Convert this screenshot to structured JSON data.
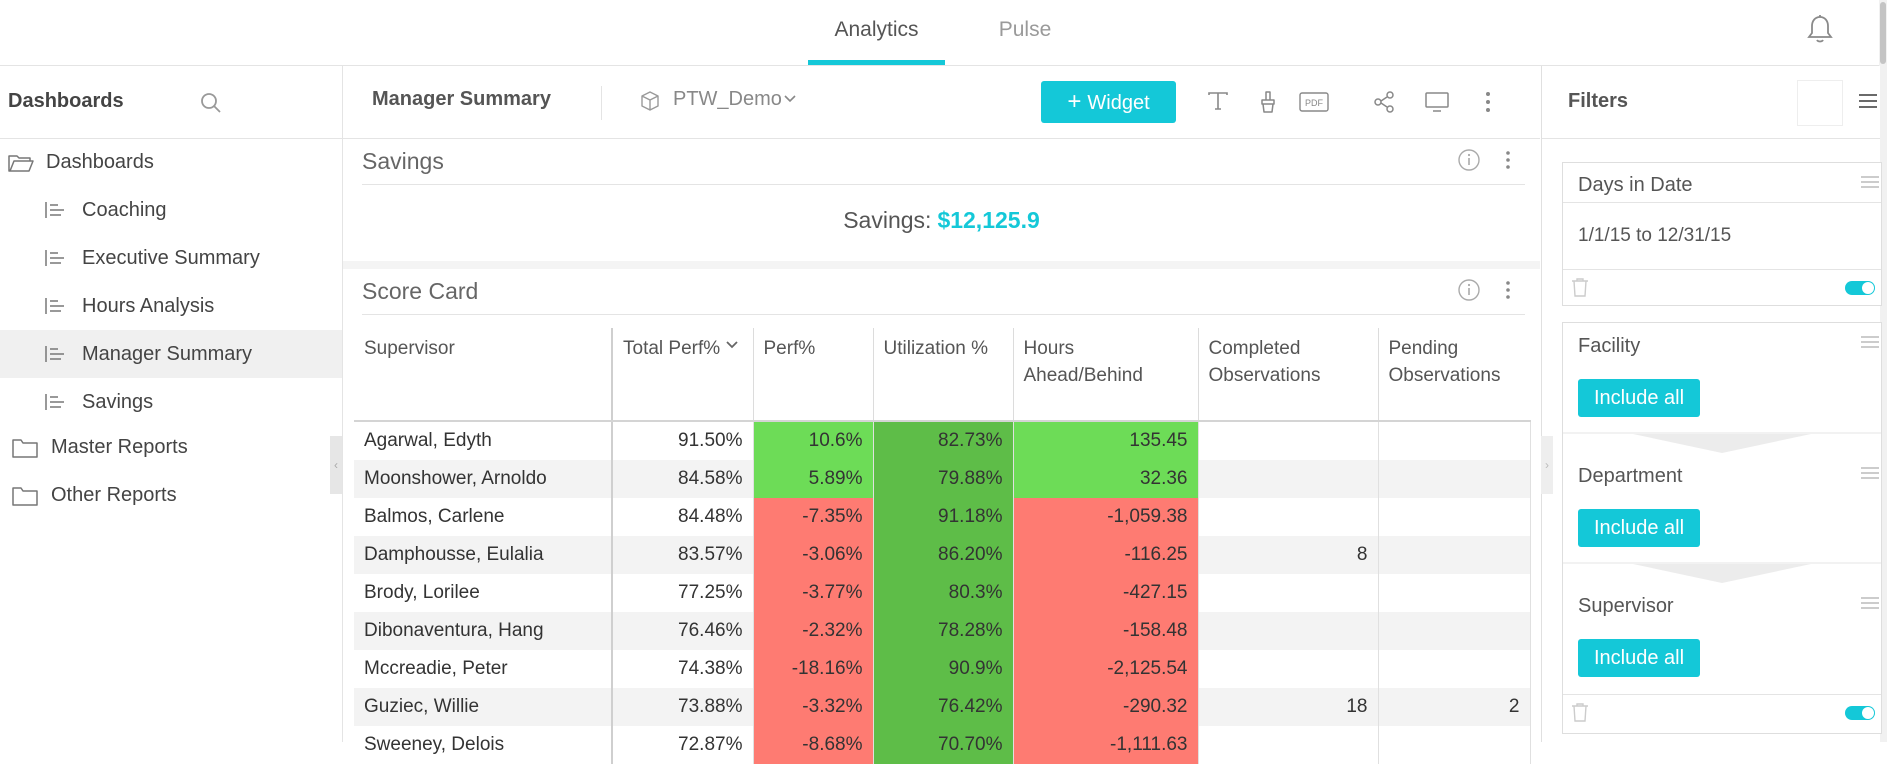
{
  "tabs": [
    {
      "label": "Analytics",
      "active": true
    },
    {
      "label": "Pulse",
      "active": false
    }
  ],
  "topbar": {
    "notifications_icon": "bell-icon"
  },
  "sidebar": {
    "title": "Dashboards",
    "search_icon": "search-icon",
    "items": [
      {
        "label": "Dashboards",
        "type": "folder-open",
        "level": 0
      },
      {
        "label": "Coaching",
        "type": "dashboard",
        "level": 1
      },
      {
        "label": "Executive Summary",
        "type": "dashboard",
        "level": 1
      },
      {
        "label": "Hours Analysis",
        "type": "dashboard",
        "level": 1
      },
      {
        "label": "Manager Summary",
        "type": "dashboard",
        "level": 1,
        "selected": true
      },
      {
        "label": "Savings",
        "type": "dashboard",
        "level": 1
      },
      {
        "label": "Master Reports",
        "type": "folder",
        "level": 0
      },
      {
        "label": "Other Reports",
        "type": "folder",
        "level": 0
      }
    ]
  },
  "header": {
    "title": "Manager Summary",
    "datasource": "PTW_Demo",
    "widget_button": "Widget",
    "tools": [
      "text-icon",
      "brush-icon",
      "pdf-icon",
      "share-icon",
      "monitor-icon",
      "more-icon"
    ]
  },
  "savings_widget": {
    "title": "Savings",
    "label": "Savings:",
    "value": "$12,125.9"
  },
  "scorecard": {
    "title": "Score Card",
    "columns": [
      "Supervisor",
      "Total Perf%",
      "Perf%",
      "Utilization %",
      "Hours Ahead/Behind",
      "Completed Observations",
      "Pending Observations"
    ],
    "rows": [
      [
        "Agarwal, Edyth",
        "91.50%",
        "10.6%",
        "82.73%",
        "135.45",
        "",
        ""
      ],
      [
        "Moonshower, Arnoldo",
        "84.58%",
        "5.89%",
        "79.88%",
        "32.36",
        "",
        ""
      ],
      [
        "Balmos, Carlene",
        "84.48%",
        "-7.35%",
        "91.18%",
        "-1,059.38",
        "",
        ""
      ],
      [
        "Damphousse, Eulalia",
        "83.57%",
        "-3.06%",
        "86.20%",
        "-116.25",
        "8",
        ""
      ],
      [
        "Brody, Lorilee",
        "77.25%",
        "-3.77%",
        "80.3%",
        "-427.15",
        "",
        ""
      ],
      [
        "Dibonaventura, Hang",
        "76.46%",
        "-2.32%",
        "78.28%",
        "-158.48",
        "",
        ""
      ],
      [
        "Mccreadie, Peter",
        "74.38%",
        "-18.16%",
        "90.9%",
        "-2,125.54",
        "",
        ""
      ],
      [
        "Guziec, Willie",
        "73.88%",
        "-3.32%",
        "76.42%",
        "-290.32",
        "18",
        "2"
      ],
      [
        "Sweeney, Delois",
        "72.87%",
        "-8.68%",
        "70.70%",
        "-1,111.63",
        "",
        ""
      ]
    ],
    "colors": {
      "green_light": "#6ddc57",
      "green_dark": "#5ebd48",
      "red": "#fe7b72"
    }
  },
  "filters": {
    "title": "Filters",
    "date_filter": {
      "title": "Days in Date",
      "value": "1/1/15 to 12/31/15"
    },
    "group": [
      {
        "title": "Facility",
        "button": "Include all"
      },
      {
        "title": "Department",
        "button": "Include all"
      },
      {
        "title": "Supervisor",
        "button": "Include all"
      }
    ]
  },
  "colors": {
    "accent": "#14c8d8"
  }
}
